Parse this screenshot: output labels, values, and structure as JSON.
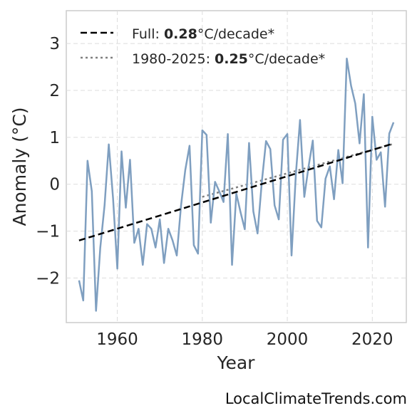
{
  "chart_data": {
    "type": "line",
    "xlabel": "Year",
    "ylabel": "Anomaly (°C)",
    "xlim": [
      1948,
      2028
    ],
    "ylim": [
      -2.95,
      3.7
    ],
    "x_ticks": [
      1960,
      1980,
      2000,
      2020
    ],
    "y_ticks": [
      -2,
      -1,
      0,
      1,
      2,
      3
    ],
    "y_tick_labels": [
      "−2",
      "−1",
      "0",
      "1",
      "2",
      "3"
    ],
    "grid": true,
    "legend_position": "top-left",
    "legend": [
      {
        "prefix": "Full: ",
        "value": "0.28",
        "suffix": "°C/decade*"
      },
      {
        "prefix": "1980-2025: ",
        "value": "0.25",
        "suffix": "°C/decade*"
      }
    ],
    "series": [
      {
        "x": [
          1951,
          1952,
          1953,
          1954,
          1955,
          1956,
          1957,
          1958,
          1959,
          1960,
          1961,
          1962,
          1963,
          1964,
          1965,
          1966,
          1967,
          1968,
          1969,
          1970,
          1971,
          1972,
          1973,
          1974,
          1975,
          1976,
          1977,
          1978,
          1979,
          1980,
          1981,
          1982,
          1983,
          1984,
          1985,
          1986,
          1987,
          1988,
          1989,
          1990,
          1991,
          1992,
          1993,
          1994,
          1995,
          1996,
          1997,
          1998,
          1999,
          2000,
          2001,
          2002,
          2003,
          2004,
          2005,
          2006,
          2007,
          2008,
          2009,
          2010,
          2011,
          2012,
          2013,
          2014,
          2015,
          2016,
          2017,
          2018,
          2019,
          2020,
          2021,
          2022,
          2023,
          2024,
          2025
        ],
        "values": [
          -2.05,
          -2.48,
          0.5,
          -0.15,
          -2.7,
          -1.35,
          -0.45,
          0.85,
          -0.3,
          -1.8,
          0.7,
          -0.5,
          0.52,
          -1.25,
          -0.95,
          -1.72,
          -0.85,
          -0.95,
          -1.35,
          -0.75,
          -1.68,
          -0.95,
          -1.2,
          -1.52,
          -0.45,
          0.3,
          0.82,
          -1.3,
          -1.48,
          1.15,
          1.05,
          -0.82,
          0.05,
          -0.15,
          -0.38,
          1.07,
          -1.72,
          -0.2,
          -0.6,
          -0.96,
          0.88,
          -0.58,
          -1.05,
          0.05,
          0.92,
          0.75,
          -0.45,
          -0.75,
          0.95,
          1.07,
          -1.52,
          0.2,
          1.37,
          -0.27,
          0.38,
          0.93,
          -0.78,
          -0.92,
          0.12,
          0.38,
          -0.32,
          0.73,
          0.02,
          2.68,
          2.1,
          1.72,
          0.87,
          1.92,
          -1.35,
          1.44,
          0.52,
          0.68,
          -0.48,
          1.08,
          1.32
        ],
        "color": "#7f9fc0"
      }
    ],
    "trend_full": {
      "x": [
        1951,
        2025
      ],
      "y": [
        -1.2,
        0.87
      ],
      "color": "#000000"
    },
    "trend_recent": {
      "x": [
        1980,
        2025
      ],
      "y": [
        -0.27,
        0.86
      ],
      "color": "#808080"
    }
  },
  "watermark": "LocalClimateTrends.com"
}
